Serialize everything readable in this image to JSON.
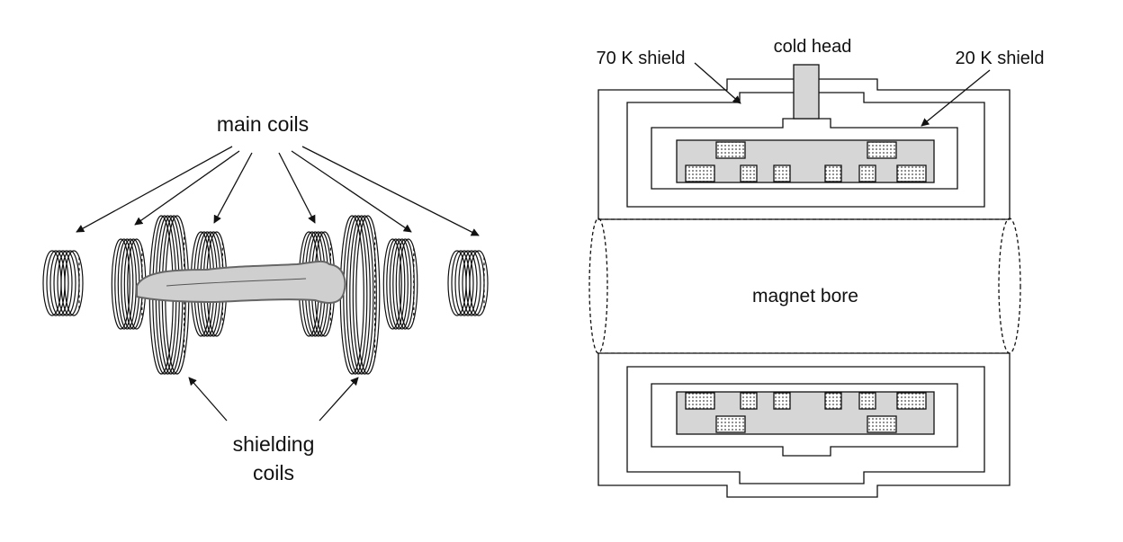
{
  "left_figure": {
    "main_coils_label": "main coils",
    "shielding_label_line1": "shielding",
    "shielding_label_line2": "coils"
  },
  "right_figure": {
    "cold_head_label": "cold head",
    "shield_70k_label": "70 K shield",
    "shield_20k_label": "20 K shield",
    "bore_label": "magnet bore"
  },
  "colors": {
    "line": "#111111",
    "coil_fill": "#d6d6d6",
    "patient_fill": "#c8c8c8"
  }
}
